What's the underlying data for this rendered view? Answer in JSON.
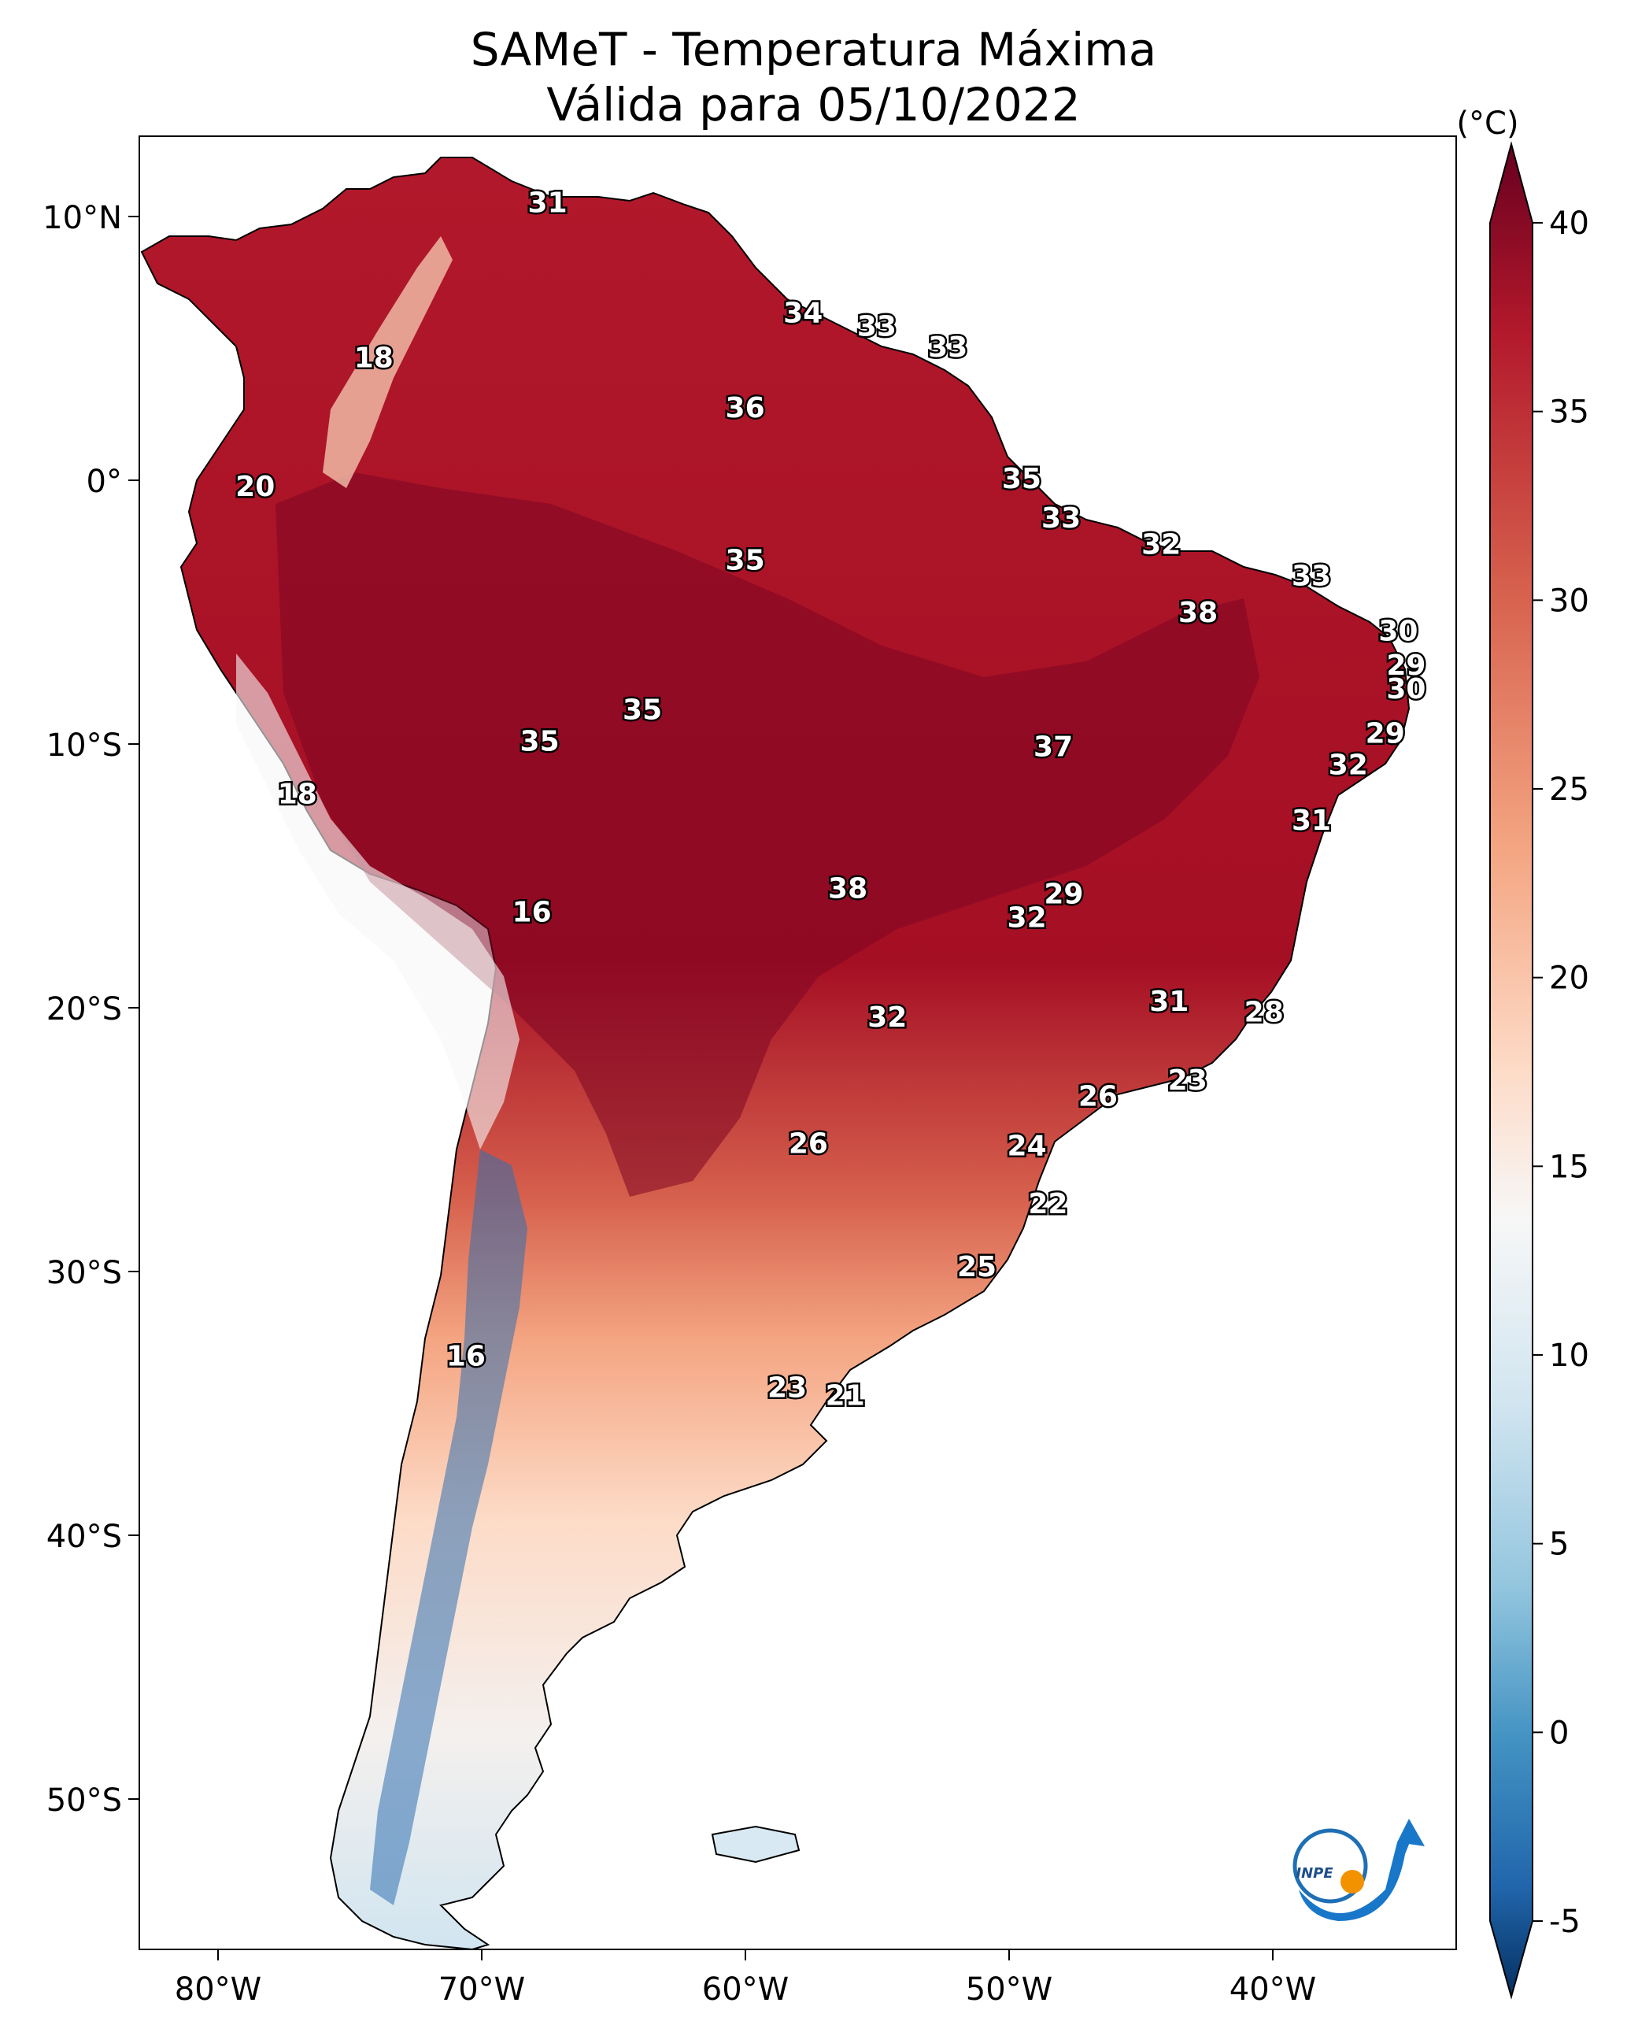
{
  "title": {
    "line1": "SAMeT - Temperatura Máxima",
    "line2": "Válida para 05/10/2022"
  },
  "map": {
    "lon_ticks": [
      "80°W",
      "70°W",
      "60°W",
      "50°W",
      "40°W"
    ],
    "lat_ticks": [
      "10°N",
      "0°",
      "10°S",
      "20°S",
      "30°S",
      "40°S",
      "50°S"
    ],
    "extent": {
      "lon_min": -83,
      "lon_max": -33,
      "lat_min": -56,
      "lat_max": 13
    },
    "grid": false
  },
  "colorbar": {
    "unit": "(°C)",
    "ticks": [
      "40",
      "35",
      "30",
      "25",
      "20",
      "15",
      "10",
      "5",
      "0",
      "-5"
    ],
    "colors": [
      "#67001f",
      "#b2182b",
      "#d6604d",
      "#f4a582",
      "#fddbc7",
      "#f7f7f7",
      "#d1e5f0",
      "#92c5de",
      "#4393c3",
      "#2166ac",
      "#053061"
    ]
  },
  "city_values": [
    {
      "value": "31",
      "lon": -67.5,
      "lat": 10.5
    },
    {
      "value": "34",
      "lon": -57.8,
      "lat": 6.3
    },
    {
      "value": "33",
      "lon": -55.0,
      "lat": 5.8
    },
    {
      "value": "33",
      "lon": -52.3,
      "lat": 5.0
    },
    {
      "value": "18",
      "lon": -74.1,
      "lat": 4.6
    },
    {
      "value": "36",
      "lon": -60.0,
      "lat": 2.7
    },
    {
      "value": "35",
      "lon": -49.5,
      "lat": 0.0
    },
    {
      "value": "20",
      "lon": -78.6,
      "lat": -0.3
    },
    {
      "value": "33",
      "lon": -48.0,
      "lat": -1.5
    },
    {
      "value": "32",
      "lon": -44.2,
      "lat": -2.5
    },
    {
      "value": "35",
      "lon": -60.0,
      "lat": -3.1
    },
    {
      "value": "33",
      "lon": -38.5,
      "lat": -3.7
    },
    {
      "value": "38",
      "lon": -42.8,
      "lat": -5.1
    },
    {
      "value": "30",
      "lon": -35.2,
      "lat": -5.8
    },
    {
      "value": "29",
      "lon": -34.9,
      "lat": -7.1
    },
    {
      "value": "30",
      "lon": -34.9,
      "lat": -8.0
    },
    {
      "value": "35",
      "lon": -63.9,
      "lat": -8.8
    },
    {
      "value": "35",
      "lon": -67.8,
      "lat": -10.0
    },
    {
      "value": "29",
      "lon": -35.7,
      "lat": -9.7
    },
    {
      "value": "37",
      "lon": -48.3,
      "lat": -10.2
    },
    {
      "value": "32",
      "lon": -37.1,
      "lat": -10.9
    },
    {
      "value": "18",
      "lon": -77.0,
      "lat": -12.0
    },
    {
      "value": "31",
      "lon": -38.5,
      "lat": -13.0
    },
    {
      "value": "38",
      "lon": -56.1,
      "lat": -15.6
    },
    {
      "value": "29",
      "lon": -47.9,
      "lat": -15.8
    },
    {
      "value": "32",
      "lon": -49.3,
      "lat": -16.7
    },
    {
      "value": "16",
      "lon": -68.1,
      "lat": -16.5
    },
    {
      "value": "31",
      "lon": -43.9,
      "lat": -19.9
    },
    {
      "value": "28",
      "lon": -40.3,
      "lat": -20.3
    },
    {
      "value": "32",
      "lon": -54.6,
      "lat": -20.5
    },
    {
      "value": "23",
      "lon": -43.2,
      "lat": -22.9
    },
    {
      "value": "26",
      "lon": -46.6,
      "lat": -23.5
    },
    {
      "value": "26",
      "lon": -57.6,
      "lat": -25.3
    },
    {
      "value": "24",
      "lon": -49.3,
      "lat": -25.4
    },
    {
      "value": "22",
      "lon": -48.5,
      "lat": -27.6
    },
    {
      "value": "25",
      "lon": -51.2,
      "lat": -30.0
    },
    {
      "value": "16",
      "lon": -70.6,
      "lat": -33.4
    },
    {
      "value": "23",
      "lon": -58.4,
      "lat": -34.6
    },
    {
      "value": "21",
      "lon": -56.2,
      "lat": -34.9
    }
  ],
  "logo": {
    "text": "INPE"
  }
}
